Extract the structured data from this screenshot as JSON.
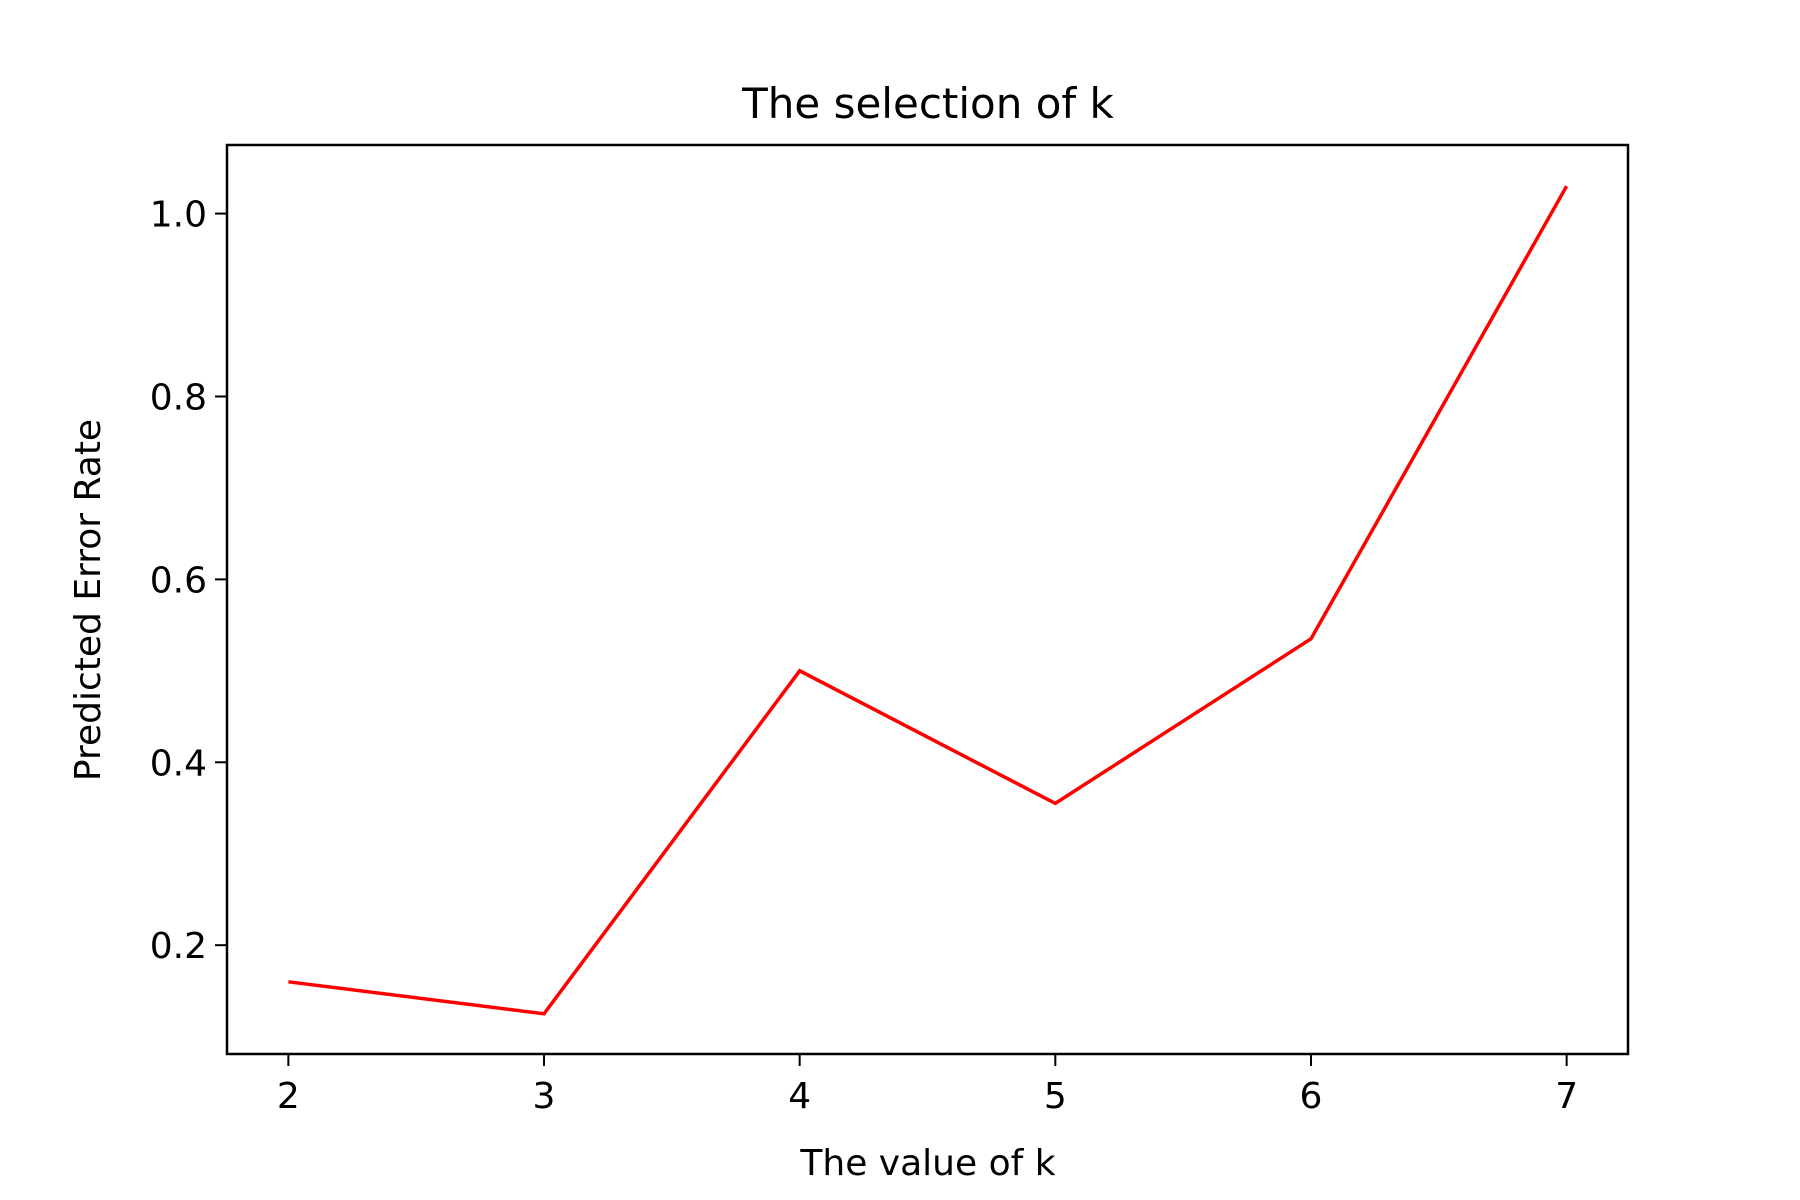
{
  "chart_data": {
    "type": "line",
    "title": "The selection of k",
    "xlabel": "The value of k",
    "ylabel": "Predicted Error Rate",
    "x": [
      2,
      3,
      4,
      5,
      6,
      7
    ],
    "series": [
      {
        "color": "#ff0000",
        "values": [
          0.16,
          0.125,
          0.5,
          0.355,
          0.535,
          1.03
        ]
      }
    ],
    "xticks": [
      2,
      3,
      4,
      5,
      6,
      7
    ],
    "yticks": [
      0.2,
      0.4,
      0.6,
      0.8,
      1.0
    ],
    "ytick_labels": [
      "0.2",
      "0.4",
      "0.6",
      "0.8",
      "1.0"
    ],
    "xlim": [
      1.76,
      7.24
    ],
    "ylim": [
      0.081,
      1.075
    ],
    "grid": false,
    "legend": false
  }
}
